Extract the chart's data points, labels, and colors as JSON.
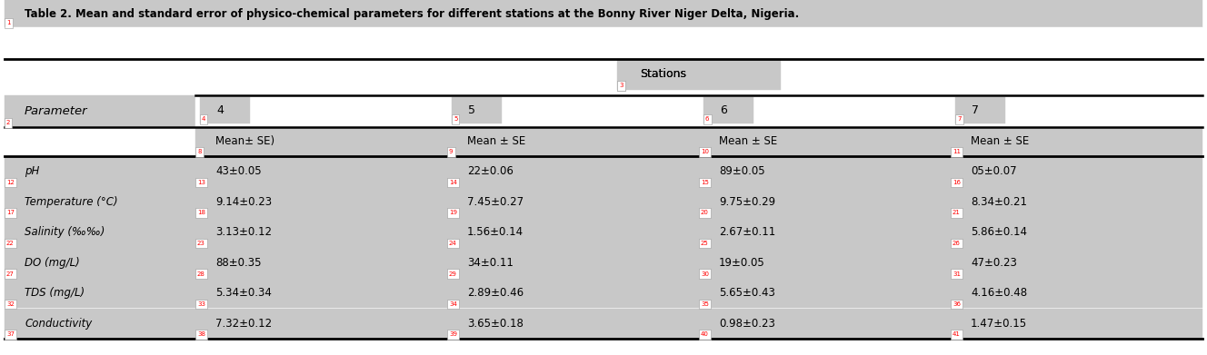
{
  "title": "Table 2. Mean and standard error of physico-chemical parameters for different stations at the Bonny River Niger Delta, Nigeria.",
  "stations_header": "Stations",
  "station_labels": [
    "4",
    "5",
    "6",
    "7"
  ],
  "station_subheaders": [
    "Mean± SE)",
    "Mean ± SE",
    "Mean ± SE",
    "Mean ± SE"
  ],
  "param_header": "Parameter",
  "parameters": [
    "pH",
    "Temperature (°C)",
    "Salinity (‰‰)",
    "DO (mg/L)",
    "TDS (mg/L)",
    "Conductivity"
  ],
  "data": [
    [
      "43±0.05",
      "22±0.06",
      "89±0.05",
      "05±0.07"
    ],
    [
      "9.14±0.23",
      "7.45±0.27",
      "9.75±0.29",
      "8.34±0.21"
    ],
    [
      "3.13±0.12",
      "1.56±0.14",
      "2.67±0.11",
      "5.86±0.14"
    ],
    [
      "88±0.35",
      "34±0.11",
      "19±0.05",
      "47±0.23"
    ],
    [
      "5.34±0.34",
      "2.89±0.46",
      "5.65±0.43",
      "4.16±0.48"
    ],
    [
      "7.32±0.12",
      "3.65±0.18",
      "0.98±0.23",
      "1.47±0.15"
    ]
  ],
  "bg_gray": "#c8c8c8",
  "bg_light_gray": "#d4d4d4",
  "bg_white": "#ffffff",
  "line_color": "#000000",
  "number_labels": {
    "title": "1",
    "stations_header": "3",
    "param_header": "2",
    "station4": "4",
    "station5": "5",
    "station6": "6",
    "station7": "7",
    "subheader4": "8",
    "subheader5": "9",
    "subheader6": "10",
    "subheader7": "11",
    "row_labels": [
      "12",
      "17",
      "22",
      "27",
      "32",
      "37"
    ],
    "data_labels": [
      [
        "13",
        "14",
        "15",
        "16"
      ],
      [
        "18",
        "19",
        "20",
        "21"
      ],
      [
        "23",
        "24",
        "25",
        "26"
      ],
      [
        "28",
        "29",
        "30",
        "31"
      ],
      [
        "33",
        "34",
        "35",
        "36"
      ],
      [
        "38",
        "39",
        "40",
        "41"
      ]
    ]
  },
  "fig_w": 13.28,
  "fig_h": 3.91,
  "dpi": 100
}
